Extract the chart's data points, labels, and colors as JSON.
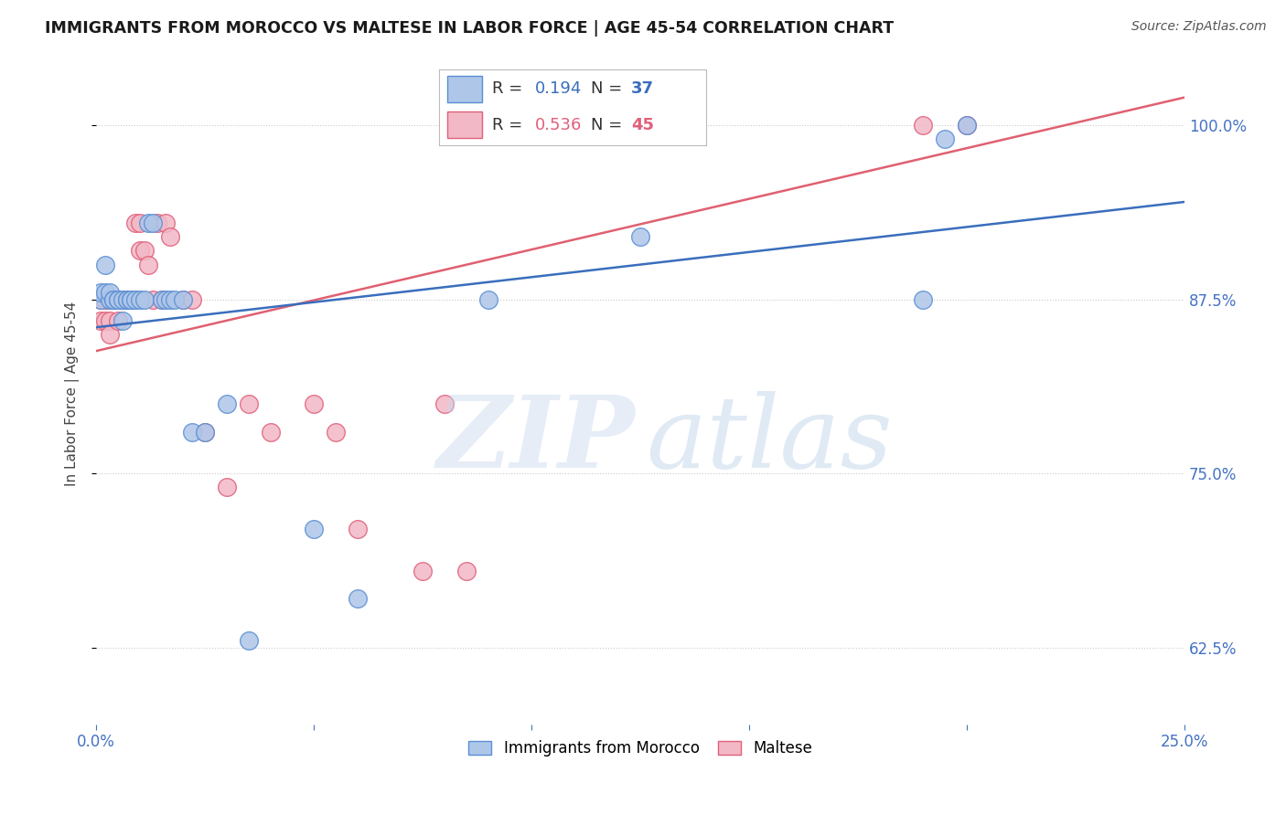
{
  "title": "IMMIGRANTS FROM MOROCCO VS MALTESE IN LABOR FORCE | AGE 45-54 CORRELATION CHART",
  "source": "Source: ZipAtlas.com",
  "ylabel": "In Labor Force | Age 45-54",
  "xlim": [
    0.0,
    0.25
  ],
  "ylim": [
    0.57,
    1.045
  ],
  "ytick_labels": [
    "62.5%",
    "75.0%",
    "87.5%",
    "100.0%"
  ],
  "yticks": [
    0.625,
    0.75,
    0.875,
    1.0
  ],
  "axis_color": "#4472c4",
  "background_color": "#ffffff",
  "series": [
    {
      "name": "Immigrants from Morocco",
      "color": "#aec6e8",
      "edge_color": "#5b8fd4",
      "R": 0.194,
      "N": 37,
      "line_color": "#3a6ebd",
      "x": [
        0.001,
        0.001,
        0.002,
        0.002,
        0.003,
        0.003,
        0.004,
        0.004,
        0.005,
        0.005,
        0.006,
        0.006,
        0.007,
        0.007,
        0.008,
        0.008,
        0.009,
        0.01,
        0.011,
        0.012,
        0.013,
        0.015,
        0.016,
        0.017,
        0.018,
        0.02,
        0.022,
        0.025,
        0.03,
        0.035,
        0.05,
        0.06,
        0.09,
        0.125,
        0.19,
        0.195,
        0.2
      ],
      "y": [
        0.875,
        0.88,
        0.88,
        0.9,
        0.875,
        0.88,
        0.875,
        0.875,
        0.875,
        0.875,
        0.875,
        0.86,
        0.875,
        0.875,
        0.875,
        0.875,
        0.875,
        0.875,
        0.875,
        0.93,
        0.93,
        0.875,
        0.875,
        0.875,
        0.875,
        0.875,
        0.78,
        0.78,
        0.8,
        0.63,
        0.71,
        0.66,
        0.875,
        0.92,
        0.875,
        0.99,
        1.0
      ],
      "trend_x": [
        0.0,
        0.25
      ],
      "trend_y": [
        0.855,
        0.945
      ]
    },
    {
      "name": "Maltese",
      "color": "#f2b8c6",
      "edge_color": "#e0607a",
      "R": 0.536,
      "N": 45,
      "line_color": "#e06070",
      "x": [
        0.001,
        0.001,
        0.002,
        0.002,
        0.003,
        0.003,
        0.003,
        0.004,
        0.004,
        0.005,
        0.005,
        0.005,
        0.006,
        0.006,
        0.006,
        0.007,
        0.007,
        0.007,
        0.008,
        0.008,
        0.009,
        0.009,
        0.01,
        0.01,
        0.011,
        0.012,
        0.013,
        0.014,
        0.015,
        0.016,
        0.017,
        0.02,
        0.022,
        0.025,
        0.03,
        0.035,
        0.04,
        0.05,
        0.055,
        0.06,
        0.075,
        0.08,
        0.085,
        0.19,
        0.2
      ],
      "y": [
        0.875,
        0.86,
        0.86,
        0.875,
        0.875,
        0.86,
        0.85,
        0.875,
        0.875,
        0.875,
        0.875,
        0.86,
        0.875,
        0.875,
        0.875,
        0.875,
        0.875,
        0.875,
        0.875,
        0.875,
        0.875,
        0.93,
        0.91,
        0.93,
        0.91,
        0.9,
        0.875,
        0.93,
        0.875,
        0.93,
        0.92,
        0.875,
        0.875,
        0.78,
        0.74,
        0.8,
        0.78,
        0.8,
        0.78,
        0.71,
        0.68,
        0.8,
        0.68,
        1.0,
        1.0
      ],
      "trend_x": [
        0.0,
        0.25
      ],
      "trend_y": [
        0.838,
        1.02
      ]
    }
  ]
}
